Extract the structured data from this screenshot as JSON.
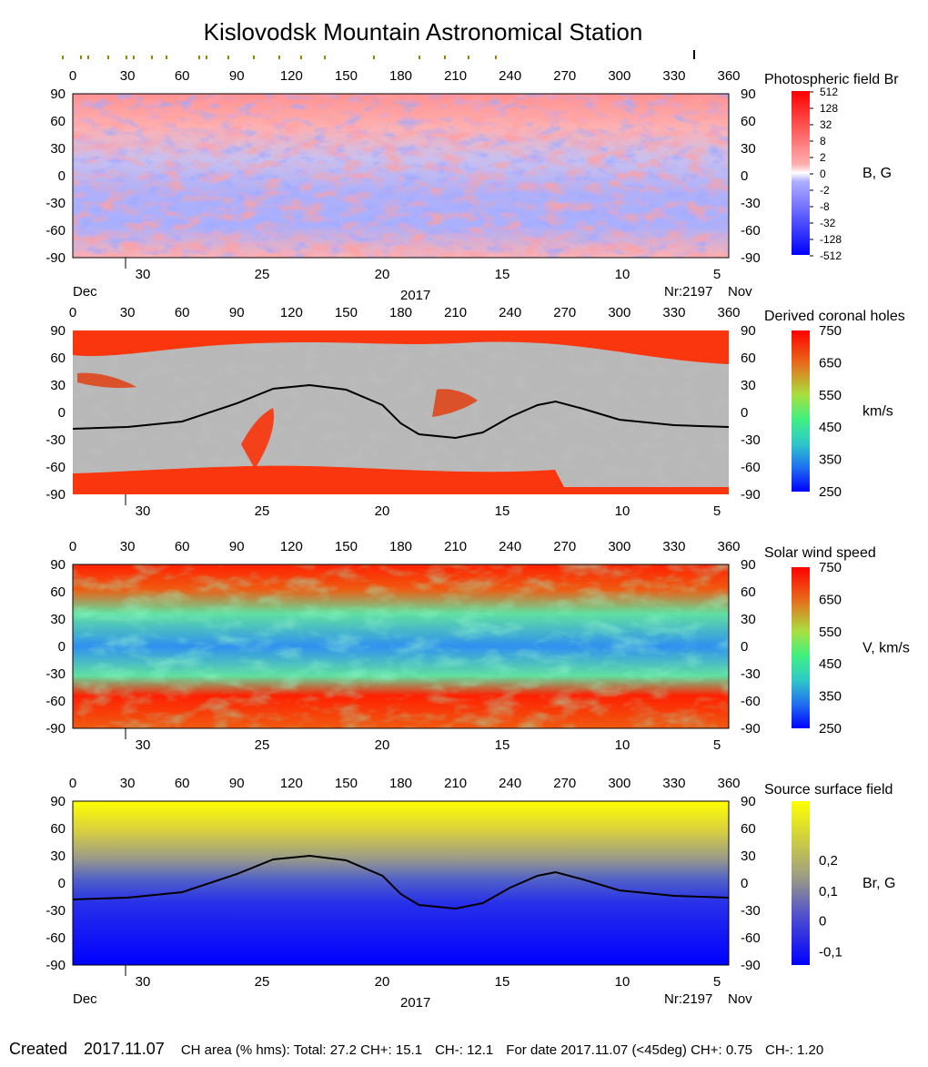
{
  "title": "Kislovodsk Mountain Astronomical Station",
  "footer": {
    "created_label": "Created",
    "created_date": "2017.11.07",
    "ch_area": "CH area (% hms): Total: 27.2 CH+: 15.1",
    "ch_minus": "CH-: 12.1",
    "for_date": "For date 2017.11.07 (<45deg) CH+: 0.75",
    "ch_minus_2": "CH-: 1.20"
  },
  "axes": {
    "longitude_ticks": [
      "0",
      "30",
      "60",
      "90",
      "120",
      "150",
      "180",
      "210",
      "240",
      "270",
      "300",
      "330",
      "360"
    ],
    "latitude_ticks": [
      "90",
      "60",
      "30",
      "0",
      "-30",
      "-60",
      "-90"
    ],
    "day_ticks": [
      "30",
      "25",
      "20",
      "15",
      "10",
      "5"
    ],
    "dec_label": "Dec",
    "nov_label": "Nov",
    "year_label": "2017",
    "rotation_label": "Nr:2197"
  },
  "colors": {
    "red": "#ff0000",
    "blue": "#0000ff",
    "yellow": "#ffff00",
    "grey_light": "#c0c0c0",
    "grey_dark": "#808080"
  },
  "chart_data": [
    {
      "type": "heatmap",
      "title": "Photospheric field Br",
      "units": "B, G",
      "xlim": [
        0,
        360
      ],
      "ylim": [
        -90,
        90
      ],
      "colorbar_labels": [
        "512",
        "128",
        "32",
        "8",
        "2",
        "0",
        "-2",
        "-8",
        "-32",
        "-128",
        "-512"
      ]
    },
    {
      "type": "heatmap",
      "title": "Derived coronal holes",
      "units": "km/s",
      "xlim": [
        0,
        360
      ],
      "ylim": [
        -90,
        90
      ],
      "colorbar_labels": [
        "750",
        "650",
        "550",
        "450",
        "350",
        "250"
      ],
      "neutral_line": {
        "x": [
          0,
          30,
          60,
          90,
          110,
          130,
          150,
          170,
          180,
          190,
          210,
          225,
          240,
          255,
          265,
          280,
          300,
          330,
          360
        ],
        "y": [
          -18,
          -16,
          -10,
          10,
          26,
          30,
          25,
          8,
          -12,
          -24,
          -28,
          -22,
          -5,
          8,
          12,
          4,
          -8,
          -14,
          -16
        ]
      }
    },
    {
      "type": "heatmap",
      "title": "Solar wind speed",
      "units": "V, km/s",
      "xlim": [
        0,
        360
      ],
      "ylim": [
        -90,
        90
      ],
      "colorbar_labels": [
        "750",
        "650",
        "550",
        "450",
        "350",
        "250"
      ]
    },
    {
      "type": "heatmap",
      "title": "Source surface field",
      "units": "Br, G",
      "xlim": [
        0,
        360
      ],
      "ylim": [
        -90,
        90
      ],
      "colorbar_labels": [
        "0,2",
        "0,1",
        "0",
        "-0,1"
      ],
      "neutral_line": {
        "x": [
          0,
          30,
          60,
          90,
          110,
          130,
          150,
          170,
          180,
          190,
          210,
          225,
          240,
          255,
          265,
          280,
          300,
          330,
          360
        ],
        "y": [
          -18,
          -16,
          -10,
          10,
          26,
          30,
          25,
          8,
          -12,
          -24,
          -28,
          -22,
          -5,
          8,
          12,
          4,
          -8,
          -14,
          -16
        ]
      }
    }
  ]
}
